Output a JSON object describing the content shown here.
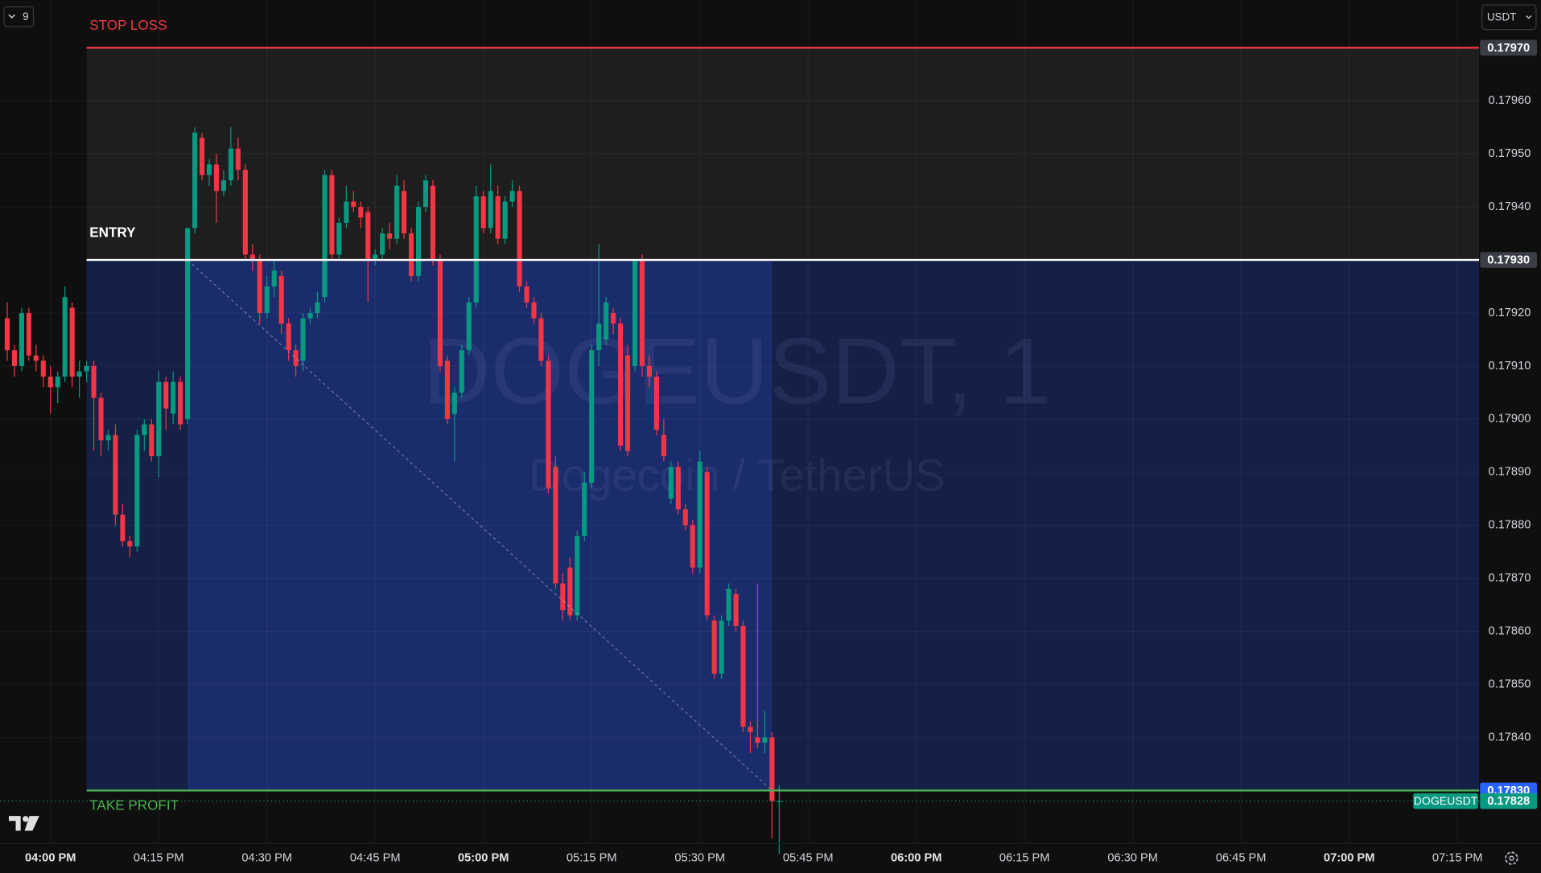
{
  "chart_data": {
    "type": "candlestick",
    "symbol": "DOGEUSDT",
    "watermark": {
      "title": "DOGEUSDT, 1",
      "subtitle": "Dogecoin / TetherUS"
    },
    "toolbar": {
      "indicators": 9,
      "currency": "USDT"
    },
    "up_color": "#089981",
    "down_color": "#f23645",
    "grid": true,
    "x": [
      "03:54 PM",
      "03:55 PM",
      "03:56 PM",
      "03:57 PM",
      "03:58 PM",
      "03:59 PM",
      "04:00 PM",
      "04:01 PM",
      "04:02 PM",
      "04:03 PM",
      "04:04 PM",
      "04:05 PM",
      "04:06 PM",
      "04:07 PM",
      "04:08 PM",
      "04:09 PM",
      "04:10 PM",
      "04:11 PM",
      "04:12 PM",
      "04:13 PM",
      "04:14 PM",
      "04:15 PM",
      "04:16 PM",
      "04:17 PM",
      "04:18 PM",
      "04:19 PM",
      "04:20 PM",
      "04:21 PM",
      "04:22 PM",
      "04:23 PM",
      "04:24 PM",
      "04:25 PM",
      "04:26 PM",
      "04:27 PM",
      "04:28 PM",
      "04:29 PM",
      "04:30 PM",
      "04:31 PM",
      "04:32 PM",
      "04:33 PM",
      "04:34 PM",
      "04:35 PM",
      "04:36 PM",
      "04:37 PM",
      "04:38 PM",
      "04:39 PM",
      "04:40 PM",
      "04:41 PM",
      "04:42 PM",
      "04:43 PM",
      "04:44 PM",
      "04:45 PM",
      "04:46 PM",
      "04:47 PM",
      "04:48 PM",
      "04:49 PM",
      "04:50 PM",
      "04:51 PM",
      "04:52 PM",
      "04:53 PM",
      "04:54 PM",
      "04:55 PM",
      "04:56 PM",
      "04:57 PM",
      "04:58 PM",
      "04:59 PM",
      "05:00 PM",
      "05:01 PM",
      "05:02 PM",
      "05:03 PM",
      "05:04 PM",
      "05:05 PM",
      "05:06 PM",
      "05:07 PM",
      "05:08 PM",
      "05:09 PM",
      "05:10 PM",
      "05:11 PM",
      "05:12 PM",
      "05:13 PM",
      "05:14 PM",
      "05:15 PM",
      "05:16 PM",
      "05:17 PM",
      "05:18 PM",
      "05:19 PM",
      "05:20 PM",
      "05:21 PM",
      "05:22 PM",
      "05:23 PM",
      "05:24 PM",
      "05:25 PM",
      "05:26 PM",
      "05:27 PM",
      "05:28 PM",
      "05:29 PM",
      "05:30 PM",
      "05:31 PM",
      "05:32 PM",
      "05:33 PM",
      "05:34 PM",
      "05:35 PM",
      "05:36 PM",
      "05:37 PM",
      "05:38 PM",
      "05:39 PM",
      "05:40 PM",
      "05:41 PM"
    ],
    "candles": {
      "open": [
        0.17919,
        0.17913,
        0.1791,
        0.1792,
        0.17912,
        0.17911,
        0.17908,
        0.17906,
        0.17908,
        0.17921,
        0.17908,
        0.17909,
        0.1791,
        0.17904,
        0.17896,
        0.17897,
        0.17882,
        0.17877,
        0.17876,
        0.17897,
        0.17899,
        0.17893,
        0.17907,
        0.17901,
        0.17907,
        0.179,
        0.17936,
        0.17953,
        0.17946,
        0.17948,
        0.17943,
        0.17945,
        0.17951,
        0.17947,
        0.17931,
        0.1793,
        0.1792,
        0.17925,
        0.17927,
        0.17918,
        0.17913,
        0.17911,
        0.17919,
        0.1792,
        0.17923,
        0.17946,
        0.17931,
        0.17937,
        0.17941,
        0.1794,
        0.17939,
        0.1793,
        0.17931,
        0.17935,
        0.17934,
        0.17943,
        0.17935,
        0.17927,
        0.1794,
        0.17944,
        0.1793,
        0.17911,
        0.17901,
        0.17905,
        0.17913,
        0.17922,
        0.17942,
        0.17936,
        0.17942,
        0.17934,
        0.17941,
        0.17943,
        0.17925,
        0.17922,
        0.17919,
        0.17911,
        0.17891,
        0.17869,
        0.17872,
        0.17863,
        0.17878,
        0.17888,
        0.17913,
        0.17915,
        0.1792,
        0.17918,
        0.17912,
        0.1791,
        0.1793,
        0.1791,
        0.17908,
        0.17897,
        0.17885,
        0.17891,
        0.17883,
        0.1788,
        0.17872,
        0.1789,
        0.17862,
        0.17852,
        0.17862,
        0.17867,
        0.17861,
        0.17842,
        0.1784,
        0.17839,
        0.1784,
        0.17828
      ],
      "high": [
        0.17922,
        0.17914,
        0.17921,
        0.17921,
        0.17914,
        0.17912,
        0.1791,
        0.17909,
        0.17925,
        0.17922,
        0.17911,
        0.17911,
        0.17911,
        0.17905,
        0.17898,
        0.17899,
        0.17884,
        0.17878,
        0.17898,
        0.179,
        0.179,
        0.17909,
        0.17908,
        0.17909,
        0.17908,
        0.17936,
        0.17955,
        0.17954,
        0.17949,
        0.1795,
        0.17947,
        0.17955,
        0.17953,
        0.17948,
        0.17933,
        0.17931,
        0.17927,
        0.1793,
        0.17928,
        0.17919,
        0.17914,
        0.1792,
        0.17921,
        0.17924,
        0.17947,
        0.17947,
        0.17938,
        0.17944,
        0.17943,
        0.17941,
        0.1794,
        0.17932,
        0.17936,
        0.17937,
        0.17946,
        0.17945,
        0.17936,
        0.17941,
        0.17946,
        0.17945,
        0.17931,
        0.17912,
        0.17906,
        0.17914,
        0.17923,
        0.17944,
        0.17943,
        0.17948,
        0.17944,
        0.17942,
        0.17945,
        0.17944,
        0.17926,
        0.17923,
        0.1792,
        0.17912,
        0.17893,
        0.17871,
        0.17874,
        0.17879,
        0.1789,
        0.17914,
        0.17933,
        0.17923,
        0.17921,
        0.17919,
        0.17914,
        0.1793,
        0.17931,
        0.17912,
        0.17909,
        0.179,
        0.17892,
        0.17892,
        0.17884,
        0.17881,
        0.17894,
        0.17891,
        0.17863,
        0.17863,
        0.17869,
        0.17868,
        0.17862,
        0.17843,
        0.17869,
        0.17845,
        0.17841,
        0.17831
      ],
      "low": [
        0.17911,
        0.17908,
        0.17909,
        0.17911,
        0.17909,
        0.17906,
        0.17901,
        0.17903,
        0.17907,
        0.17906,
        0.17904,
        0.17907,
        0.17894,
        0.17893,
        0.17894,
        0.1788,
        0.17876,
        0.17874,
        0.17875,
        0.17894,
        0.17892,
        0.17889,
        0.17898,
        0.17899,
        0.17898,
        0.17899,
        0.17935,
        0.17945,
        0.17944,
        0.17937,
        0.17942,
        0.17944,
        0.17945,
        0.1793,
        0.17928,
        0.17918,
        0.17919,
        0.17923,
        0.17916,
        0.17911,
        0.17908,
        0.17909,
        0.17918,
        0.17919,
        0.17922,
        0.1793,
        0.1793,
        0.17936,
        0.17939,
        0.17936,
        0.17922,
        0.17929,
        0.1793,
        0.17932,
        0.17933,
        0.17934,
        0.17926,
        0.17926,
        0.17939,
        0.17929,
        0.17909,
        0.17899,
        0.17892,
        0.17904,
        0.17912,
        0.17921,
        0.17935,
        0.17935,
        0.17933,
        0.17933,
        0.1794,
        0.17924,
        0.17921,
        0.17918,
        0.1791,
        0.17886,
        0.17868,
        0.17862,
        0.17862,
        0.17862,
        0.17877,
        0.17887,
        0.1791,
        0.17914,
        0.17916,
        0.17894,
        0.17893,
        0.17909,
        0.17908,
        0.17906,
        0.17897,
        0.17892,
        0.17884,
        0.17882,
        0.17879,
        0.17871,
        0.17871,
        0.17862,
        0.17851,
        0.17851,
        0.17861,
        0.1786,
        0.17841,
        0.17837,
        0.17838,
        0.17837,
        0.17821,
        0.17818
      ],
      "close": [
        0.17913,
        0.1791,
        0.1792,
        0.17912,
        0.17911,
        0.17908,
        0.17906,
        0.17908,
        0.17923,
        0.17908,
        0.17909,
        0.1791,
        0.17904,
        0.17896,
        0.17897,
        0.17882,
        0.17877,
        0.17876,
        0.17897,
        0.17899,
        0.17893,
        0.17907,
        0.17902,
        0.17907,
        0.17899,
        0.17936,
        0.17954,
        0.17946,
        0.17948,
        0.17943,
        0.17945,
        0.17951,
        0.17947,
        0.17931,
        0.1793,
        0.1792,
        0.17925,
        0.17928,
        0.17918,
        0.17913,
        0.1791,
        0.17919,
        0.1792,
        0.17922,
        0.17946,
        0.17931,
        0.17937,
        0.17941,
        0.1794,
        0.17938,
        0.1793,
        0.17931,
        0.17935,
        0.17934,
        0.17944,
        0.17935,
        0.17927,
        0.1794,
        0.17945,
        0.1793,
        0.1791,
        0.179,
        0.17905,
        0.17913,
        0.17922,
        0.17942,
        0.17936,
        0.17943,
        0.17934,
        0.17941,
        0.17943,
        0.17925,
        0.17922,
        0.17919,
        0.17911,
        0.17887,
        0.17869,
        0.17864,
        0.17863,
        0.17878,
        0.17888,
        0.17913,
        0.17918,
        0.17922,
        0.17918,
        0.17895,
        0.17894,
        0.1793,
        0.1791,
        0.17908,
        0.17898,
        0.17893,
        0.17891,
        0.17883,
        0.1788,
        0.17872,
        0.17892,
        0.17863,
        0.17852,
        0.17862,
        0.17868,
        0.17861,
        0.17842,
        0.17841,
        0.17839,
        0.1784,
        0.17828,
        0.17828
      ]
    },
    "xlim": [
      "03:53 PM",
      "07:18 PM"
    ],
    "xticks": [
      "04:00 PM",
      "04:15 PM",
      "04:30 PM",
      "04:45 PM",
      "05:00 PM",
      "05:15 PM",
      "05:30 PM",
      "05:45 PM",
      "06:00 PM",
      "06:15 PM",
      "06:30 PM",
      "06:45 PM",
      "07:00 PM",
      "07:15 PM"
    ],
    "ylim": [
      0.1782,
      0.17979
    ],
    "yticks": [
      {
        "value": 0.1796,
        "label": "0.17960"
      },
      {
        "value": 0.1795,
        "label": "0.17950"
      },
      {
        "value": 0.1794,
        "label": "0.17940"
      },
      {
        "value": 0.1792,
        "label": "0.17920"
      },
      {
        "value": 0.1791,
        "label": "0.17910"
      },
      {
        "value": 0.179,
        "label": "0.17900"
      },
      {
        "value": 0.1789,
        "label": "0.17890"
      },
      {
        "value": 0.1788,
        "label": "0.17880"
      },
      {
        "value": 0.1787,
        "label": "0.17870"
      },
      {
        "value": 0.1786,
        "label": "0.17860"
      },
      {
        "value": 0.1785,
        "label": "0.17850"
      },
      {
        "value": 0.1784,
        "label": "0.17840"
      }
    ],
    "position": {
      "start": "04:05 PM",
      "fill_start": "04:19 PM",
      "fill_end": "05:40 PM",
      "stop_loss": {
        "label": "STOP LOSS",
        "price": 0.1797,
        "price_label": "0.17970",
        "color": "#f23645"
      },
      "entry": {
        "label": "ENTRY",
        "price": 0.1793,
        "price_label": "0.17930",
        "color": "#ffffff"
      },
      "take_profit": {
        "label": "TAKE PROFIT",
        "price": 0.1783,
        "price_label": "0.17830",
        "color": "#4caf50"
      }
    },
    "last_price": {
      "value": 0.17828,
      "label": "0.17828"
    }
  }
}
